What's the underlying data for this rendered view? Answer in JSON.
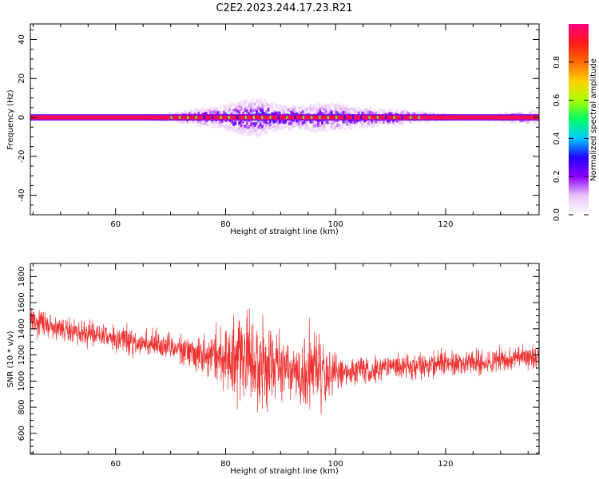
{
  "title": "C2E2.2023.244.17.23.R21",
  "chart_data": [
    {
      "type": "heatmap",
      "xlabel": "Height of straight line (km)",
      "ylabel": "Frequency (Hz)",
      "xlim": [
        44.5,
        137
      ],
      "ylim": [
        -50,
        48
      ],
      "xticks": [
        60,
        80,
        100,
        120
      ],
      "yticks": [
        40,
        20,
        0,
        -20,
        -40
      ],
      "grid": false,
      "colorbar": {
        "label": "Normalized spectral amplitude",
        "range": [
          0.0,
          1.0
        ],
        "ticks": [
          0.0,
          0.2,
          0.4,
          0.6,
          0.8
        ],
        "colormap": [
          "#ffffff",
          "#e8c4f8",
          "#8f00ff",
          "#2200ff",
          "#00c8ff",
          "#00ff66",
          "#a8ff00",
          "#ffd000",
          "#ff6a00",
          "#ff1a1a",
          "#ff007f"
        ]
      },
      "carrier_band": {
        "frequency_hz": 0,
        "half_width_hz": 1,
        "normalized_amplitude": 0.95,
        "border_amplitude": 0.22,
        "x_range": [
          44.5,
          137
        ]
      },
      "scatter_envelope": {
        "x": [
          44.5,
          60,
          70,
          74,
          78,
          82,
          84,
          86,
          88,
          90,
          92,
          94,
          96,
          98,
          100,
          102,
          104,
          106,
          108,
          110,
          112,
          114,
          118,
          122,
          126,
          130,
          134,
          137
        ],
        "max_spread_hz": [
          0,
          0,
          2,
          4,
          5,
          8,
          9,
          10,
          8,
          6,
          6,
          6,
          7,
          7,
          7,
          6,
          5,
          5,
          4,
          4,
          4,
          3,
          2,
          1,
          1,
          2,
          3,
          3
        ]
      }
    },
    {
      "type": "line",
      "xlabel": "Height of straight line (km)",
      "ylabel": "SNR (10 * v/v)",
      "xlim": [
        44.5,
        137
      ],
      "ylim": [
        440,
        1900
      ],
      "xticks": [
        60,
        80,
        100,
        120
      ],
      "yticks": [
        600,
        800,
        1000,
        1200,
        1400,
        1600,
        1800
      ],
      "grid": false,
      "color": "#ee3333",
      "trend": {
        "x": [
          44.5,
          50,
          60,
          70,
          80,
          90,
          100,
          105,
          110,
          120,
          130,
          137
        ],
        "y": [
          1460,
          1400,
          1330,
          1260,
          1180,
          1110,
          1060,
          1080,
          1100,
          1130,
          1160,
          1200
        ]
      },
      "noise": {
        "x": [
          44.5,
          60,
          70,
          76,
          80,
          83,
          85,
          87,
          89,
          92,
          95,
          97,
          100,
          102,
          105,
          120,
          137
        ],
        "amplitude": [
          110,
          110,
          130,
          170,
          300,
          420,
          480,
          420,
          320,
          260,
          380,
          340,
          200,
          140,
          110,
          110,
          120
        ]
      }
    }
  ]
}
